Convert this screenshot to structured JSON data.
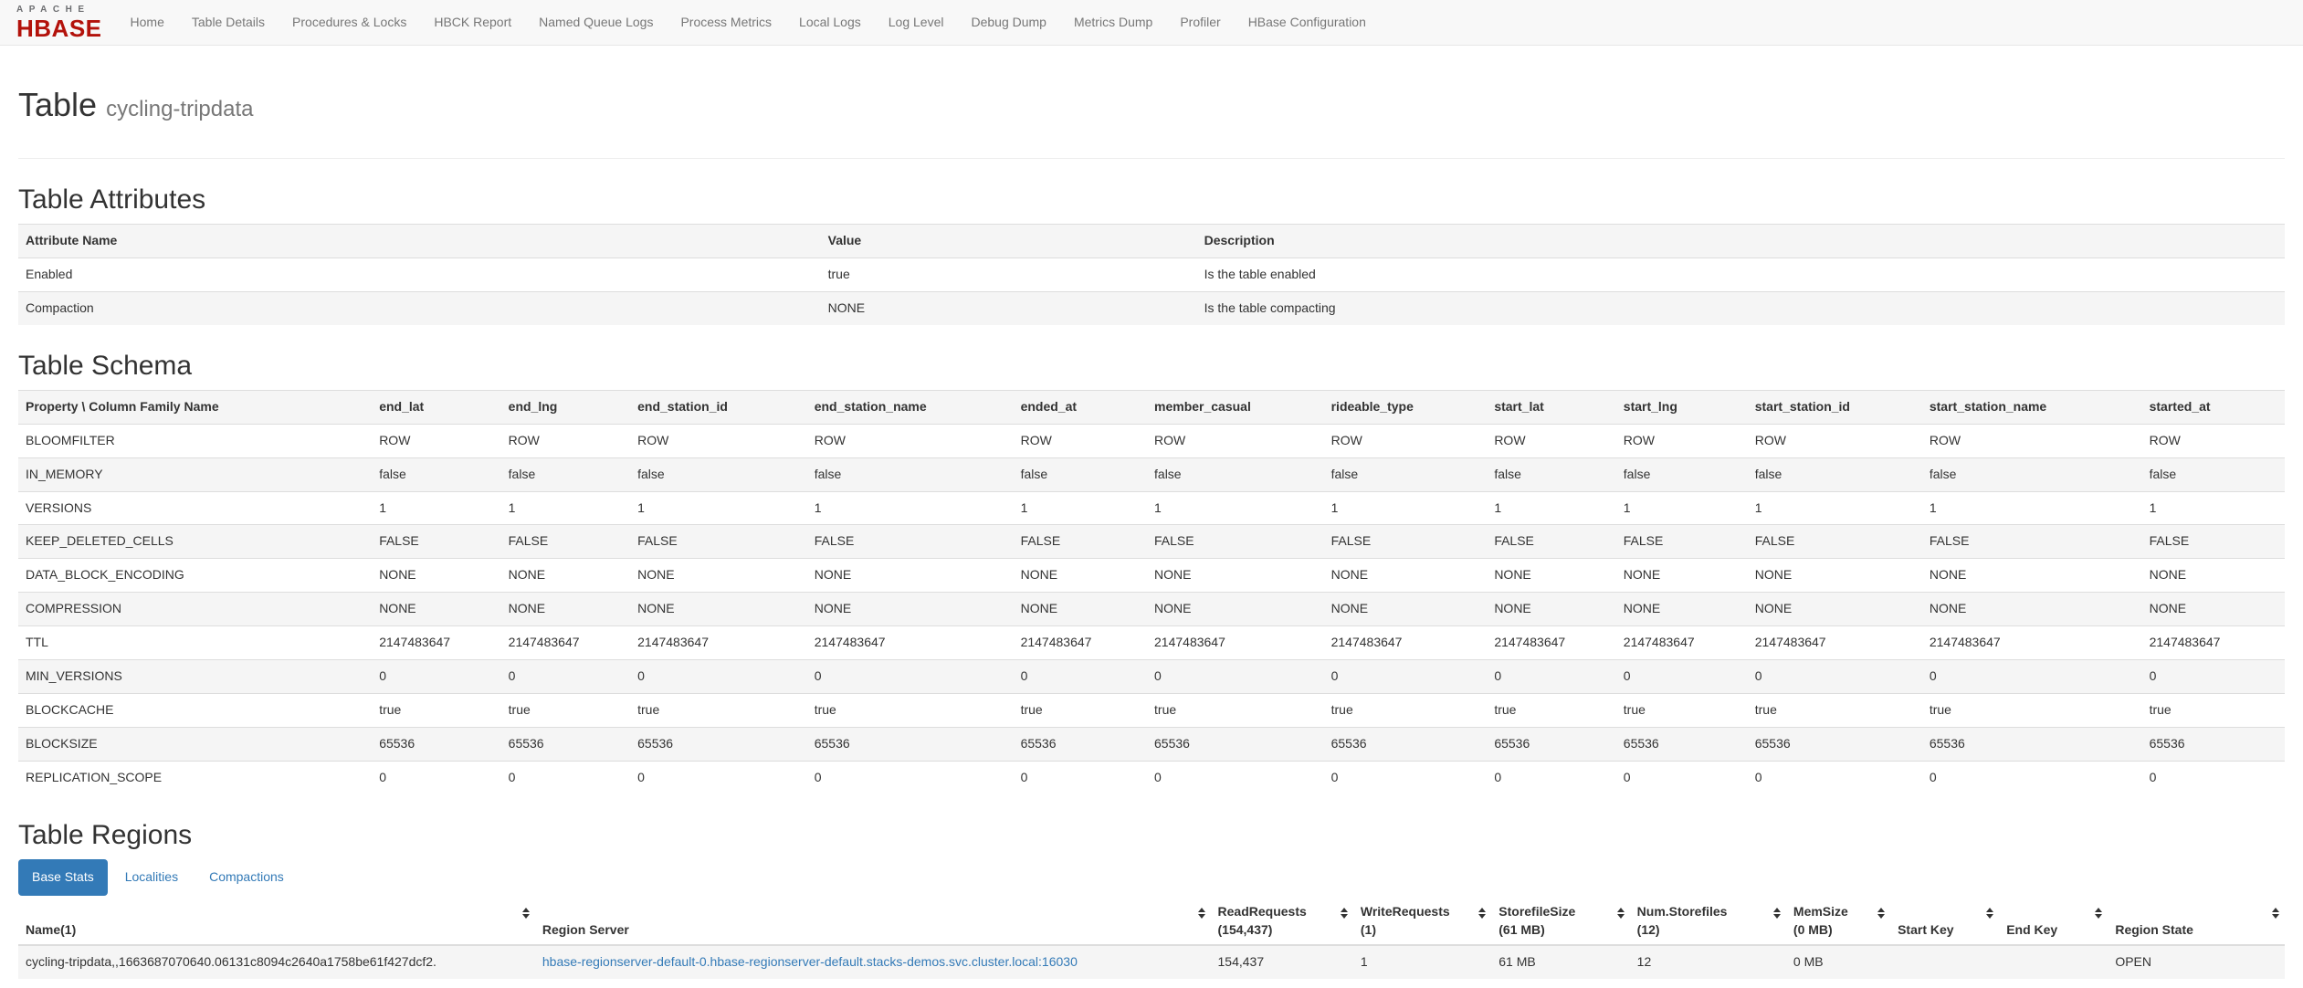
{
  "colors": {
    "accent_blue": "#337ab7",
    "logo_red": "#b3120b",
    "logo_gray": "#6d6e71",
    "navbar_bg": "#f8f8f8",
    "stripe_gray": "#f5f5f5",
    "border_gray": "#dddddd"
  },
  "navbar": {
    "logo": {
      "line1": "APACHE",
      "line2": "HBASE"
    },
    "items": [
      "Home",
      "Table Details",
      "Procedures & Locks",
      "HBCK Report",
      "Named Queue Logs",
      "Process Metrics",
      "Local Logs",
      "Log Level",
      "Debug Dump",
      "Metrics Dump",
      "Profiler",
      "HBase Configuration"
    ]
  },
  "page": {
    "title": "Table",
    "table_name": "cycling-tripdata"
  },
  "attributes": {
    "heading": "Table Attributes",
    "columns": [
      "Attribute Name",
      "Value",
      "Description"
    ],
    "col_widths": [
      "35.4%",
      "16.6%",
      ""
    ],
    "rows": [
      [
        "Enabled",
        "true",
        "Is the table enabled"
      ],
      [
        "Compaction",
        "NONE",
        "Is the table compacting"
      ]
    ]
  },
  "schema": {
    "heading": "Table Schema",
    "corner_header": "Property \\ Column Family Name",
    "corner_width": "15.6%",
    "family_widths": [
      "5.7%",
      "5.7%",
      "7.8%",
      "9.1%",
      "5.9%",
      "7.8%",
      "7.2%",
      "5.7%",
      "5.8%",
      "7.7%",
      "9.7%",
      ""
    ],
    "column_families": [
      "end_lat",
      "end_lng",
      "end_station_id",
      "end_station_name",
      "ended_at",
      "member_casual",
      "rideable_type",
      "start_lat",
      "start_lng",
      "start_station_id",
      "start_station_name",
      "started_at"
    ],
    "properties": [
      {
        "name": "BLOOMFILTER",
        "value": "ROW"
      },
      {
        "name": "IN_MEMORY",
        "value": "false"
      },
      {
        "name": "VERSIONS",
        "value": "1"
      },
      {
        "name": "KEEP_DELETED_CELLS",
        "value": "FALSE"
      },
      {
        "name": "DATA_BLOCK_ENCODING",
        "value": "NONE"
      },
      {
        "name": "COMPRESSION",
        "value": "NONE"
      },
      {
        "name": "TTL",
        "value": "2147483647"
      },
      {
        "name": "MIN_VERSIONS",
        "value": "0"
      },
      {
        "name": "BLOCKCACHE",
        "value": "true"
      },
      {
        "name": "BLOCKSIZE",
        "value": "65536"
      },
      {
        "name": "REPLICATION_SCOPE",
        "value": "0"
      }
    ]
  },
  "regions": {
    "heading": "Table Regions",
    "tabs": [
      {
        "label": "Base Stats",
        "active": true
      },
      {
        "label": "Localities",
        "active": false
      },
      {
        "label": "Compactions",
        "active": false
      }
    ],
    "columns": [
      {
        "lines": [
          "Name(1)"
        ],
        "width": "22.8%"
      },
      {
        "lines": [
          "Region Server"
        ],
        "width": "29.8%"
      },
      {
        "lines": [
          "ReadRequests",
          "(154,437)"
        ],
        "width": "6.3%"
      },
      {
        "lines": [
          "WriteRequests",
          "(1)"
        ],
        "width": "6.1%"
      },
      {
        "lines": [
          "StorefileSize",
          "(61 MB)"
        ],
        "width": "6.1%"
      },
      {
        "lines": [
          "Num.Storefiles",
          "(12)"
        ],
        "width": "6.9%"
      },
      {
        "lines": [
          "MemSize",
          "(0 MB)"
        ],
        "width": "4.6%"
      },
      {
        "lines": [
          "Start Key"
        ],
        "width": "4.8%"
      },
      {
        "lines": [
          "End Key"
        ],
        "width": "4.8%"
      },
      {
        "lines": [
          "Region State"
        ],
        "width": ""
      }
    ],
    "rows": [
      {
        "name": "cycling-tripdata,,1663687070640.06131c8094c2640a1758be61f427dcf2.",
        "region_server": "hbase-regionserver-default-0.hbase-regionserver-default.stacks-demos.svc.cluster.local:16030",
        "read_requests": "154,437",
        "write_requests": "1",
        "storefile_size": "61 MB",
        "num_storefiles": "12",
        "mem_size": "0 MB",
        "start_key": "",
        "end_key": "",
        "region_state": "OPEN"
      }
    ]
  }
}
